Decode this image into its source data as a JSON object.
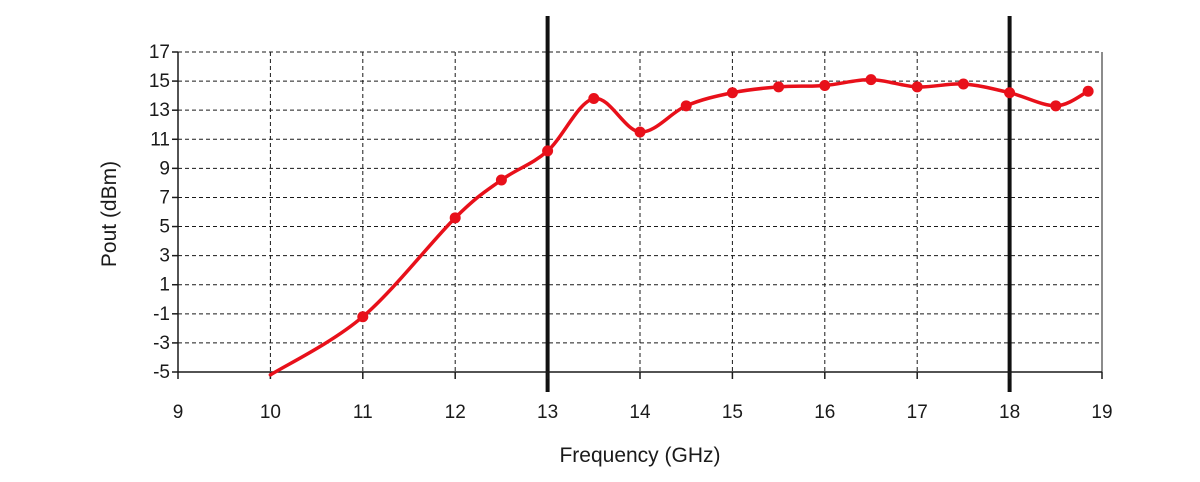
{
  "chart_data": {
    "type": "line",
    "title": "",
    "xlabel": "Frequency (GHz)",
    "ylabel": "Pout (dBm)",
    "xlim": [
      9,
      19
    ],
    "ylim": [
      -5,
      17
    ],
    "xticks": [
      9,
      10,
      11,
      12,
      13,
      14,
      15,
      16,
      17,
      18,
      19
    ],
    "yticks": [
      -5,
      -3,
      -1,
      1,
      3,
      5,
      7,
      9,
      11,
      13,
      15,
      17
    ],
    "grid": true,
    "grid_style": "dashed",
    "vertical_markers": [
      13,
      18
    ],
    "series": [
      {
        "name": "",
        "color": "#e8101a",
        "marker": "circle",
        "x": [
          10,
          11,
          12,
          12.5,
          13,
          13.5,
          14,
          14.5,
          15,
          15.5,
          16,
          16.5,
          17,
          17.5,
          18,
          18.5,
          18.85
        ],
        "y": [
          -5.2,
          -1.2,
          5.6,
          8.2,
          10.2,
          13.8,
          11.5,
          13.3,
          14.2,
          14.6,
          14.7,
          15.1,
          14.6,
          14.8,
          14.2,
          13.3,
          14.3
        ]
      }
    ]
  },
  "colors": {
    "series": "#e8101a",
    "axis": "#1a1a1a",
    "grid": "#1a1a1a",
    "marker_lines": "#111111",
    "background": "#ffffff"
  }
}
